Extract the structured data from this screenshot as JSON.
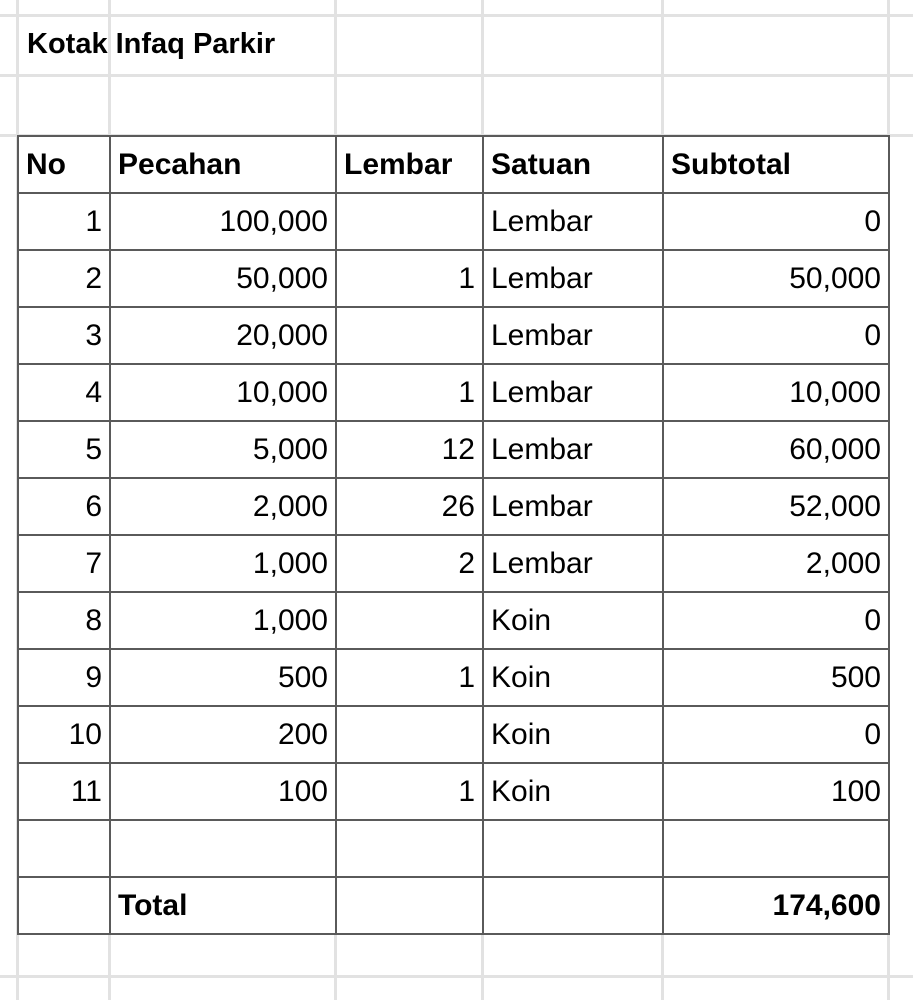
{
  "title": "Kotak Infaq Parkir",
  "headers": [
    "No",
    "Pecahan",
    "Lembar",
    "Satuan",
    "Subtotal"
  ],
  "rows": [
    [
      "1",
      "100,000",
      "",
      "Lembar",
      "0"
    ],
    [
      "2",
      "50,000",
      "1",
      "Lembar",
      "50,000"
    ],
    [
      "3",
      "20,000",
      "",
      "Lembar",
      "0"
    ],
    [
      "4",
      "10,000",
      "1",
      "Lembar",
      "10,000"
    ],
    [
      "5",
      "5,000",
      "12",
      "Lembar",
      "60,000"
    ],
    [
      "6",
      "2,000",
      "26",
      "Lembar",
      "52,000"
    ],
    [
      "7",
      "1,000",
      "2",
      "Lembar",
      "2,000"
    ],
    [
      "8",
      "1,000",
      "",
      "Koin",
      "0"
    ],
    [
      "9",
      "500",
      "1",
      "Koin",
      "500"
    ],
    [
      "10",
      "200",
      "",
      "Koin",
      "0"
    ],
    [
      "11",
      "100",
      "1",
      "Koin",
      "100"
    ]
  ],
  "total": {
    "label": "Total",
    "value": "174,600"
  }
}
